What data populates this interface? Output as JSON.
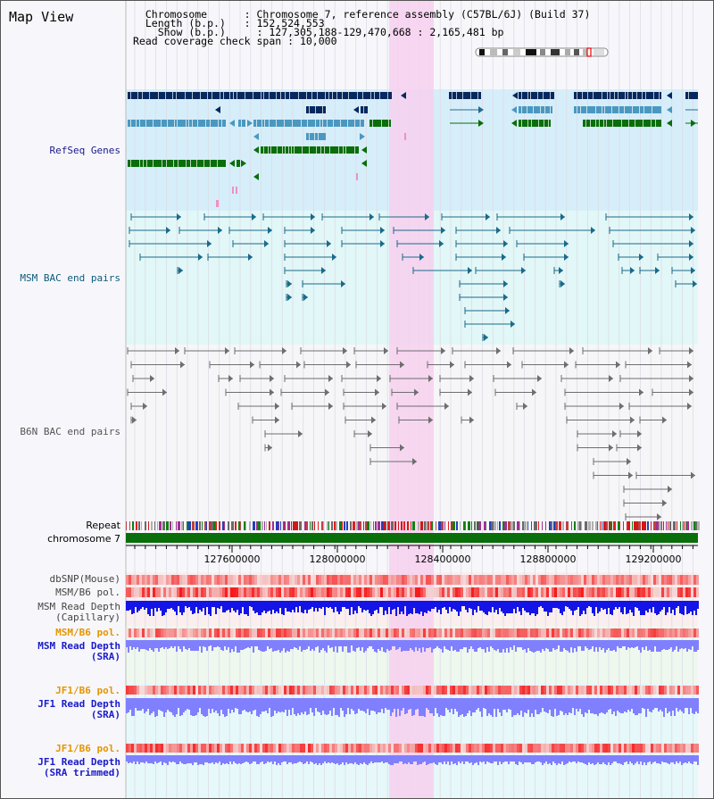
{
  "title": "Map View",
  "info": {
    "chromosome_key": "Chromosome",
    "chromosome_val": "Chromosome 7, reference assembly (C57BL/6J) (Build 37)",
    "length_key": "Length (b.p.)",
    "length_val": "152,524,553",
    "show_key": "Show (b.p.)",
    "show_val": "127,305,188-129,470,668 : 2,165,481 bp",
    "span_key": "Read coverage check span",
    "span_val": "10,000"
  },
  "tracks": {
    "refseq": "RefSeq Genes",
    "msm_bac": "MSM BAC end pairs",
    "b6n_bac": "B6N BAC end pairs",
    "repeat": "Repeat",
    "chromosome": "chromosome 7",
    "dbsnp": "dbSNP(Mouse)",
    "msm_b6_pol_1": "MSM/B6 pol.",
    "msm_depth_cap_1": "MSM Read Depth",
    "msm_depth_cap_2": "(Capillary)",
    "msm_b6_pol_2": "MSM/B6 pol.",
    "msm_depth_sra_1": "MSM Read Depth",
    "msm_depth_sra_2": "(SRA)",
    "jf1_b6_pol_1": "JF1/B6 pol.",
    "jf1_depth_sra_1": "JF1 Read Depth",
    "jf1_depth_sra_2": "(SRA)",
    "jf1_b6_pol_2": "JF1/B6 pol.",
    "jf1_depth_trim_1": "JF1 Read Depth",
    "jf1_depth_trim_2": "(SRA trimmed)"
  },
  "axis_ticks": [
    "127600000",
    "128000000",
    "128400000",
    "128800000",
    "129200000"
  ],
  "colors": {
    "refseq_label": "#1a1a8c",
    "msm_label": "#0d5a7a",
    "b6n_label": "#555555",
    "orange_label": "#e69500",
    "blue_label": "#1a1acc",
    "highlight": "#f7d0ee",
    "refseq_bg": "#d6eefa",
    "msm_bg": "#e2f7f7",
    "depth_blue": "#1414e6",
    "depth_violet": "#8080ff",
    "pol_red": "#f03030",
    "chrom_green": "#0a6e0a",
    "gene_dark": "#06285e",
    "gene_light": "#4a98c0",
    "gene_green": "#0a6e0a"
  }
}
